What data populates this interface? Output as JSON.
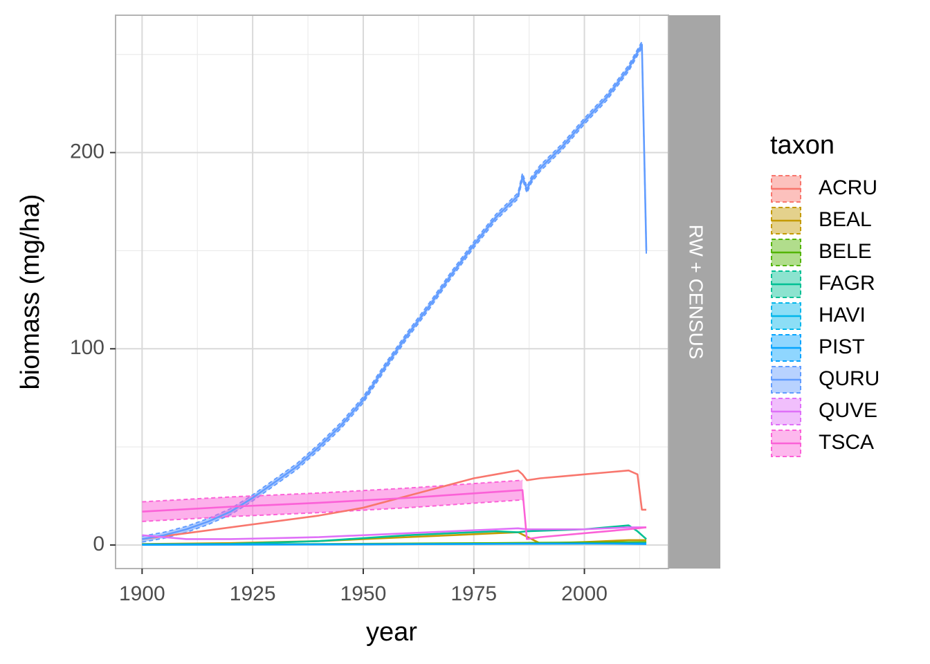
{
  "chart_data": {
    "type": "line",
    "xlabel": "year",
    "ylabel": "biomass (mg/ha)",
    "facet_label": "RW + CENSUS",
    "xlim": [
      1894,
      2019
    ],
    "ylim": [
      -12,
      270
    ],
    "x_ticks": [
      1900,
      1925,
      1950,
      1975,
      2000
    ],
    "y_ticks": [
      0,
      100,
      200
    ],
    "grid": true,
    "legend": {
      "title": "taxon",
      "position": "right",
      "entries": [
        "ACRU",
        "BEAL",
        "BELE",
        "FAGR",
        "HAVI",
        "PIST",
        "QURU",
        "QUVE",
        "TSCA"
      ]
    },
    "series": [
      {
        "name": "ACRU",
        "color": "#F8766D",
        "x": [
          1900,
          1910,
          1920,
          1930,
          1940,
          1950,
          1960,
          1965,
          1970,
          1975,
          1980,
          1985,
          1986,
          1987,
          1990,
          1995,
          2000,
          2005,
          2010,
          2012,
          2013,
          2014
        ],
        "y": [
          3,
          6,
          9,
          12,
          15,
          19,
          25,
          28,
          31,
          34,
          36,
          38,
          36,
          33,
          34,
          35,
          36,
          37,
          38,
          36,
          18,
          18
        ],
        "band": null
      },
      {
        "name": "BEAL",
        "color": "#C49A00",
        "x": [
          1900,
          1920,
          1940,
          1960,
          1970,
          1980,
          1985,
          1990,
          2000,
          2010,
          2014
        ],
        "y": [
          0.5,
          1,
          2,
          4,
          5,
          6,
          6.5,
          0.8,
          1.5,
          2.5,
          2.5
        ],
        "band": null
      },
      {
        "name": "BELE",
        "color": "#53B400",
        "x": [
          1900,
          1940,
          1980,
          2014
        ],
        "y": [
          0.3,
          0.5,
          1,
          1.5
        ],
        "band": null
      },
      {
        "name": "FAGR",
        "color": "#00C094",
        "x": [
          1900,
          1920,
          1940,
          1960,
          1980,
          1985,
          1987,
          2000,
          2010,
          2012,
          2014
        ],
        "y": [
          0.3,
          0.6,
          2,
          5,
          7,
          6.5,
          7,
          8,
          10,
          7,
          3
        ],
        "band": null
      },
      {
        "name": "HAVI",
        "color": "#00B6EB",
        "x": [
          1900,
          1950,
          2000,
          2014
        ],
        "y": [
          0.2,
          0.4,
          0.7,
          0.9
        ],
        "band": null
      },
      {
        "name": "PIST",
        "color": "#06A4FF",
        "x": [
          1900,
          1950,
          2000,
          2014
        ],
        "y": [
          0.1,
          0.3,
          0.8,
          0.5
        ],
        "band": null
      },
      {
        "name": "QURU",
        "color": "#619CFF",
        "x": [
          1900,
          1905,
          1910,
          1915,
          1920,
          1925,
          1930,
          1935,
          1940,
          1945,
          1950,
          1955,
          1960,
          1965,
          1970,
          1975,
          1980,
          1985,
          1986,
          1987,
          1988,
          1990,
          1995,
          2000,
          2005,
          2010,
          2013,
          2014
        ],
        "y": [
          3,
          5,
          8,
          12,
          17,
          24,
          32,
          40,
          50,
          61,
          74,
          91,
          107,
          122,
          138,
          153,
          167,
          178,
          188,
          181,
          186,
          192,
          203,
          216,
          228,
          243,
          255,
          150
        ],
        "band": 1.5
      },
      {
        "name": "QUVE",
        "color": "#DF70F8",
        "x": [
          1900,
          1905,
          1910,
          1920,
          1930,
          1940,
          1950,
          1960,
          1970,
          1980,
          1985,
          1987,
          2000,
          2010,
          2014
        ],
        "y": [
          5,
          4,
          3,
          3,
          3.5,
          4,
          5,
          6,
          7,
          8,
          8.5,
          8,
          8,
          9,
          9
        ],
        "band": null
      },
      {
        "name": "TSCA",
        "color": "#FB61D7",
        "x": [
          1900,
          1920,
          1940,
          1960,
          1986,
          1987,
          1990,
          2000,
          2010,
          2014
        ],
        "y": [
          17,
          19.5,
          21.5,
          24,
          28,
          3,
          4,
          6,
          8,
          9
        ],
        "band": [
          5,
          5,
          5,
          5,
          5,
          0,
          0,
          0,
          0,
          0
        ]
      }
    ]
  }
}
